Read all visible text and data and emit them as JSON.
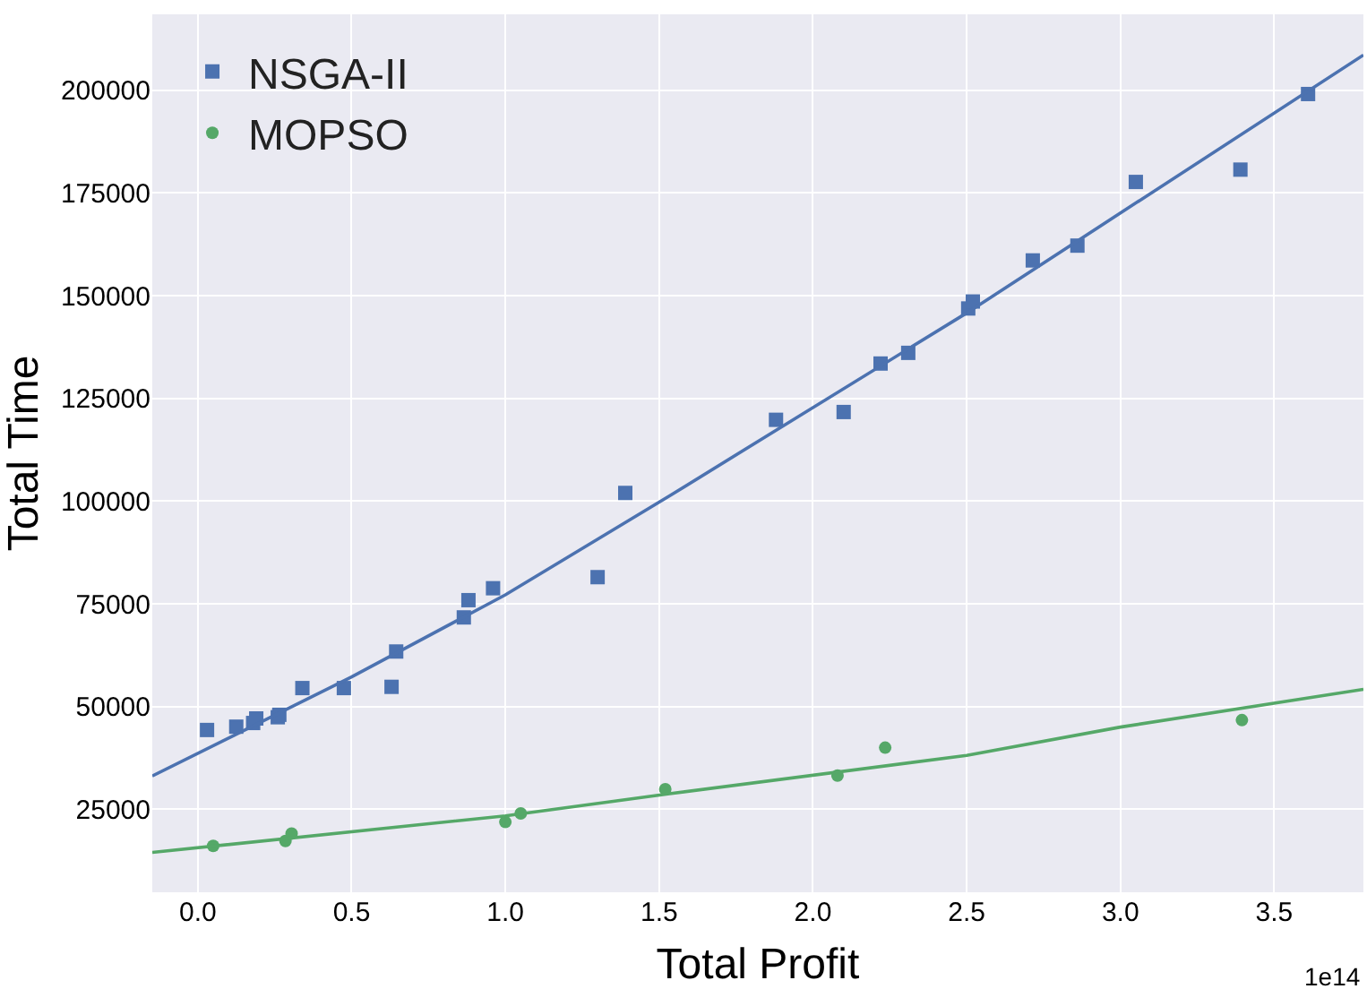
{
  "chart_data": {
    "type": "scatter",
    "xlabel": "Total Profit",
    "ylabel": "Total Time",
    "annotations": [
      "1e14"
    ],
    "xlim": [
      -0.148,
      3.79
    ],
    "ylim": [
      4800,
      218500
    ],
    "xticks": [
      {
        "value": 0,
        "label": "0.0"
      },
      {
        "value": 0.5,
        "label": "0.5"
      },
      {
        "value": 1,
        "label": "1.0"
      },
      {
        "value": 1.5,
        "label": "1.5"
      },
      {
        "value": 2,
        "label": "2.0"
      },
      {
        "value": 2.5,
        "label": "2.5"
      },
      {
        "value": 3,
        "label": "3.0"
      },
      {
        "value": 3.5,
        "label": "3.5"
      }
    ],
    "yticks": [
      25000,
      50000,
      75000,
      100000,
      125000,
      150000,
      175000,
      200000
    ],
    "grid": true,
    "legend": "top left",
    "series": [
      {
        "name": "NSGA-II",
        "marker": "square",
        "color": "#4c72b0",
        "x": [
          0.03,
          0.125,
          0.18,
          0.19,
          0.26,
          0.265,
          0.34,
          0.475,
          0.63,
          0.645,
          0.865,
          0.88,
          0.96,
          1.3,
          1.39,
          1.88,
          2.1,
          2.22,
          2.31,
          2.505,
          2.52,
          2.715,
          2.86,
          3.05,
          3.39,
          3.61
        ],
        "values": [
          44300,
          45100,
          46000,
          47100,
          47400,
          48000,
          54500,
          54500,
          54800,
          63400,
          71700,
          75900,
          78800,
          81500,
          102000,
          119800,
          121700,
          133500,
          136100,
          146900,
          148600,
          158600,
          162200,
          177700,
          180700,
          199100
        ]
      },
      {
        "name": "MOPSO",
        "marker": "circle",
        "color": "#55a868",
        "x": [
          0.05,
          0.285,
          0.305,
          1.0,
          1.05,
          1.52,
          2.08,
          2.235,
          3.395
        ],
        "values": [
          16100,
          17300,
          19100,
          21900,
          24000,
          29900,
          33200,
          40000,
          46700
        ]
      },
      {
        "type": "line",
        "marker": "none",
        "color": "#4c72b0",
        "x": [
          -0.148,
          0.5,
          1.0,
          1.534,
          2.5,
          3.79
        ],
        "values": [
          33100,
          57200,
          77200,
          101300,
          145800,
          208600
        ]
      },
      {
        "type": "line",
        "marker": "none",
        "color": "#55a868",
        "x": [
          -0.148,
          1.0,
          1.534,
          2.5,
          3.0,
          3.79
        ],
        "values": [
          14500,
          23400,
          28800,
          38100,
          45000,
          54200
        ]
      }
    ]
  }
}
